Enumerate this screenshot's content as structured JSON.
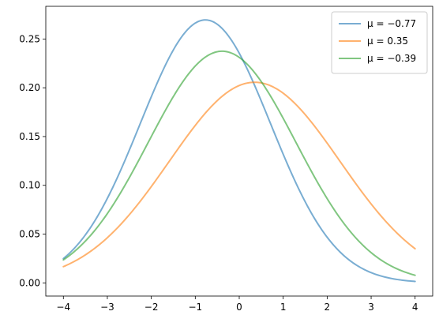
{
  "chart_data": {
    "type": "line",
    "title": "",
    "xlabel": "",
    "ylabel": "",
    "xlim": [
      -4.4,
      4.4
    ],
    "ylim": [
      -0.0135,
      0.2835
    ],
    "xticks": [
      -4,
      -3,
      -2,
      -1,
      0,
      1,
      2,
      3,
      4
    ],
    "xtick_labels": [
      "−4",
      "−3",
      "−2",
      "−1",
      "0",
      "1",
      "2",
      "3",
      "4"
    ],
    "yticks": [
      0.0,
      0.05,
      0.1,
      0.15,
      0.2,
      0.25
    ],
    "ytick_labels": [
      "0.00",
      "0.05",
      "0.10",
      "0.15",
      "0.20",
      "0.25"
    ],
    "grid": false,
    "legend_position": "top-right",
    "x_range": [
      -4,
      4
    ],
    "series": [
      {
        "name": "μ = −0.77",
        "mu": -0.77,
        "sigma": 1.48,
        "color": "#1f77b4",
        "x": [
          -4,
          -3,
          -2,
          -1,
          -0.77,
          0,
          1,
          2,
          3,
          4
        ],
        "y": [
          0.0251,
          0.0862,
          0.1905,
          0.2685,
          0.2696,
          0.2349,
          0.1309,
          0.0465,
          0.0105,
          0.0015
        ]
      },
      {
        "name": "μ = 0.35",
        "mu": 0.35,
        "sigma": 1.94,
        "color": "#ff7f0e",
        "x": [
          -4,
          -3,
          -2,
          -1,
          0,
          0.35,
          1,
          2,
          3,
          4
        ],
        "y": [
          0.0166,
          0.0454,
          0.0984,
          0.161,
          0.2028,
          0.2056,
          0.1947,
          0.1427,
          0.0797,
          0.0345
        ]
      },
      {
        "name": "μ = −0.39",
        "mu": -0.39,
        "sigma": 1.68,
        "color": "#2ca02c",
        "x": [
          -4,
          -3,
          -2,
          -1,
          -0.39,
          0,
          1,
          2,
          3,
          4
        ],
        "y": [
          0.0235,
          0.0714,
          0.1502,
          0.2225,
          0.2375,
          0.23,
          0.1685,
          0.0863,
          0.0313,
          0.0077
        ]
      }
    ]
  }
}
